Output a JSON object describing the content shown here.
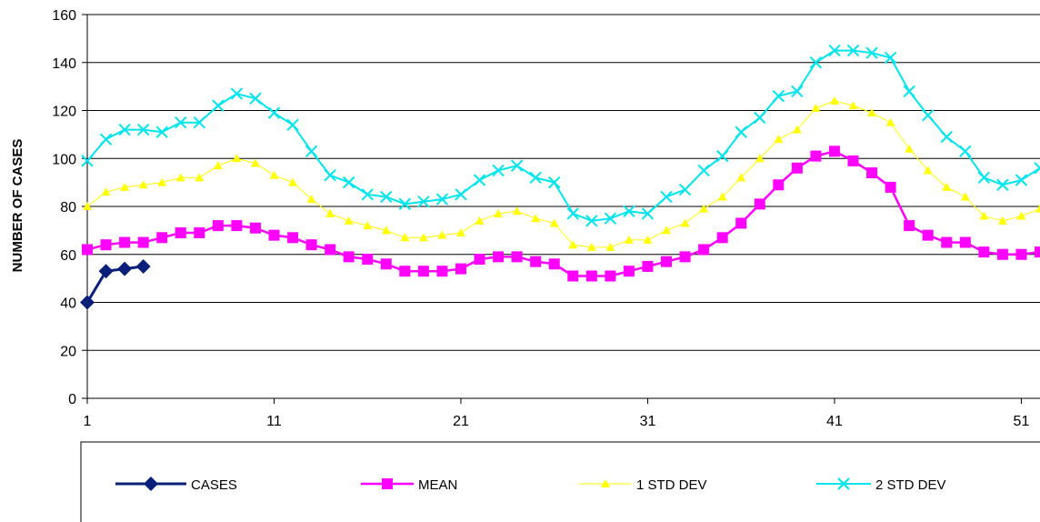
{
  "chart_data": {
    "type": "line",
    "title": "",
    "xlabel": "",
    "ylabel": "NUMBER OF CASES",
    "xlim": [
      1,
      52
    ],
    "ylim": [
      0,
      160
    ],
    "y_ticks": [
      0,
      20,
      40,
      60,
      80,
      100,
      120,
      140,
      160
    ],
    "x_ticks": [
      1,
      11,
      21,
      31,
      41,
      51
    ],
    "grid": "horizontal",
    "legend_position": "bottom",
    "series": [
      {
        "name": "CASES",
        "color": "#0a1f7a",
        "marker": "diamond",
        "x": [
          1,
          2,
          3,
          4
        ],
        "values": [
          40,
          53,
          54,
          55
        ]
      },
      {
        "name": "MEAN",
        "color": "#ff00ff",
        "marker": "square",
        "x": [
          1,
          2,
          3,
          4,
          5,
          6,
          7,
          8,
          9,
          10,
          11,
          12,
          13,
          14,
          15,
          16,
          17,
          18,
          19,
          20,
          21,
          22,
          23,
          24,
          25,
          26,
          27,
          28,
          29,
          30,
          31,
          32,
          33,
          34,
          35,
          36,
          37,
          38,
          39,
          40,
          41,
          42,
          43,
          44,
          45,
          46,
          47,
          48,
          49,
          50,
          51,
          52
        ],
        "values": [
          62,
          64,
          65,
          65,
          67,
          69,
          69,
          72,
          72,
          71,
          68,
          67,
          64,
          62,
          59,
          58,
          56,
          53,
          53,
          53,
          54,
          58,
          59,
          59,
          57,
          56,
          51,
          51,
          51,
          53,
          55,
          57,
          59,
          62,
          67,
          73,
          81,
          89,
          96,
          101,
          103,
          99,
          94,
          88,
          72,
          68,
          65,
          65,
          61,
          60,
          60,
          61
        ]
      },
      {
        "name": "1 STD DEV",
        "color": "#ffff00",
        "marker": "triangle",
        "x": [
          1,
          2,
          3,
          4,
          5,
          6,
          7,
          8,
          9,
          10,
          11,
          12,
          13,
          14,
          15,
          16,
          17,
          18,
          19,
          20,
          21,
          22,
          23,
          24,
          25,
          26,
          27,
          28,
          29,
          30,
          31,
          32,
          33,
          34,
          35,
          36,
          37,
          38,
          39,
          40,
          41,
          42,
          43,
          44,
          45,
          46,
          47,
          48,
          49,
          50,
          51,
          52
        ],
        "values": [
          80,
          86,
          88,
          89,
          90,
          92,
          92,
          97,
          100,
          98,
          93,
          90,
          83,
          77,
          74,
          72,
          70,
          67,
          67,
          68,
          69,
          74,
          77,
          78,
          75,
          73,
          64,
          63,
          63,
          66,
          66,
          70,
          73,
          79,
          84,
          92,
          100,
          108,
          112,
          121,
          124,
          122,
          119,
          115,
          104,
          95,
          88,
          84,
          76,
          74,
          76,
          79
        ]
      },
      {
        "name": "2 STD DEV",
        "color": "#00e5ee",
        "marker": "x",
        "x": [
          1,
          2,
          3,
          4,
          5,
          6,
          7,
          8,
          9,
          10,
          11,
          12,
          13,
          14,
          15,
          16,
          17,
          18,
          19,
          20,
          21,
          22,
          23,
          24,
          25,
          26,
          27,
          28,
          29,
          30,
          31,
          32,
          33,
          34,
          35,
          36,
          37,
          38,
          39,
          40,
          41,
          42,
          43,
          44,
          45,
          46,
          47,
          48,
          49,
          50,
          51,
          52
        ],
        "values": [
          99,
          108,
          112,
          112,
          111,
          115,
          115,
          122,
          127,
          125,
          119,
          114,
          103,
          93,
          90,
          85,
          84,
          81,
          82,
          83,
          85,
          91,
          95,
          97,
          92,
          90,
          77,
          74,
          75,
          78,
          77,
          84,
          87,
          95,
          101,
          111,
          117,
          126,
          128,
          140,
          145,
          145,
          144,
          142,
          128,
          118,
          109,
          103,
          92,
          89,
          91,
          96
        ]
      }
    ]
  }
}
